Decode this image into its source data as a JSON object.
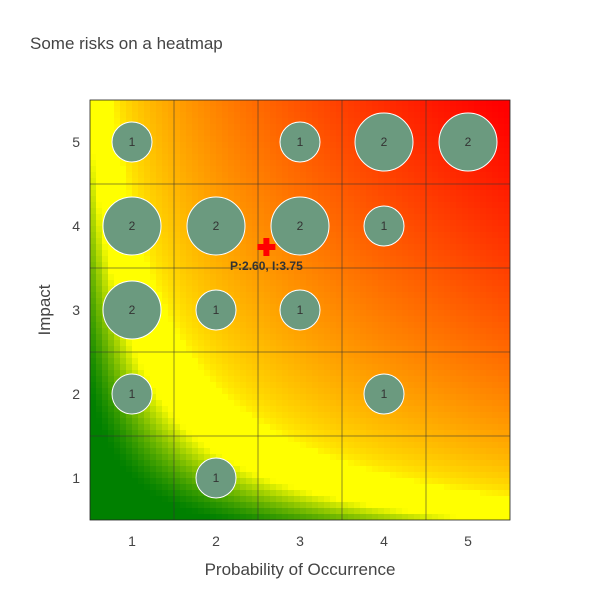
{
  "chart_data": {
    "type": "scatter",
    "title": "Some risks on a heatmap",
    "xlabel": "Probability of Occurrence",
    "ylabel": "Impact",
    "xlim": [
      0.5,
      5.5
    ],
    "ylim": [
      0.5,
      5.5
    ],
    "xticks": [
      "1",
      "2",
      "3",
      "4",
      "5"
    ],
    "yticks": [
      "1",
      "2",
      "3",
      "4",
      "5"
    ],
    "grid": true,
    "background": "green-yellow-red gradient (green bottom-left, red top-right)",
    "points": [
      {
        "x": 1,
        "y": 5,
        "count": 1
      },
      {
        "x": 3,
        "y": 5,
        "count": 1
      },
      {
        "x": 4,
        "y": 5,
        "count": 2
      },
      {
        "x": 5,
        "y": 5,
        "count": 2
      },
      {
        "x": 1,
        "y": 4,
        "count": 2
      },
      {
        "x": 2,
        "y": 4,
        "count": 2
      },
      {
        "x": 3,
        "y": 4,
        "count": 2
      },
      {
        "x": 4,
        "y": 4,
        "count": 1
      },
      {
        "x": 1,
        "y": 3,
        "count": 2
      },
      {
        "x": 2,
        "y": 3,
        "count": 1
      },
      {
        "x": 3,
        "y": 3,
        "count": 1
      },
      {
        "x": 1,
        "y": 2,
        "count": 1
      },
      {
        "x": 4,
        "y": 2,
        "count": 1
      },
      {
        "x": 2,
        "y": 1,
        "count": 1
      }
    ],
    "marker": {
      "x": 2.6,
      "y": 3.75,
      "label": "P:2.60, I:3.75"
    },
    "colors": {
      "bubble": "#6b9a7f",
      "marker": "#ff0000",
      "green": "#008000",
      "yellow": "#ffff00",
      "red": "#ff0000"
    }
  }
}
